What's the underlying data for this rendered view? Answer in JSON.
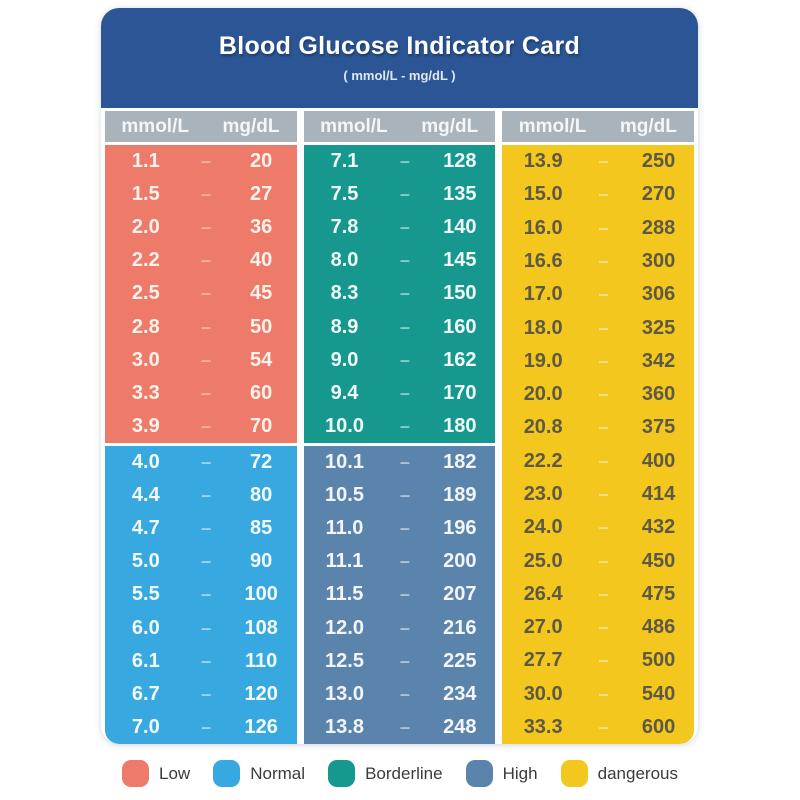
{
  "card": {
    "header": {
      "title": "Blood Glucose Indicator Card",
      "subtitle": "( mmol/L - mg/dL )",
      "background": "#2b5594"
    },
    "column_header": {
      "background": "#a8b3bb",
      "text_color": "#f4f6f7"
    }
  },
  "chart_data": {
    "type": "table",
    "title": "Blood Glucose Indicator Card",
    "subtitle": "( mmol/L - mg/dL )",
    "units": [
      "mmol/L",
      "mg/dL"
    ],
    "columns_layout": [
      [
        0,
        1
      ],
      [
        2,
        3
      ],
      [
        4
      ]
    ],
    "categories": [
      {
        "name": "Low",
        "color": "#ee7a69",
        "text_color": "#fdf3ec",
        "dash_color": "#f6b3a4",
        "rows": [
          [
            1.1,
            20
          ],
          [
            1.5,
            27
          ],
          [
            2.0,
            36
          ],
          [
            2.2,
            40
          ],
          [
            2.5,
            45
          ],
          [
            2.8,
            50
          ],
          [
            3.0,
            54
          ],
          [
            3.3,
            60
          ],
          [
            3.9,
            70
          ]
        ]
      },
      {
        "name": "Normal",
        "color": "#38a8e1",
        "text_color": "#f2fafd",
        "dash_color": "#9ed4ef",
        "rows": [
          [
            4.0,
            72
          ],
          [
            4.4,
            80
          ],
          [
            4.7,
            85
          ],
          [
            5.0,
            90
          ],
          [
            5.5,
            100
          ],
          [
            6.0,
            108
          ],
          [
            6.1,
            110
          ],
          [
            6.7,
            120
          ],
          [
            7.0,
            126
          ]
        ]
      },
      {
        "name": "Borderline",
        "color": "#17988e",
        "text_color": "#f0faf8",
        "dash_color": "#8accc5",
        "rows": [
          [
            7.1,
            128
          ],
          [
            7.5,
            135
          ],
          [
            7.8,
            140
          ],
          [
            8.0,
            145
          ],
          [
            8.3,
            150
          ],
          [
            8.9,
            160
          ],
          [
            9.0,
            162
          ],
          [
            9.4,
            170
          ],
          [
            10.0,
            180
          ]
        ]
      },
      {
        "name": "High",
        "color": "#5b84ad",
        "text_color": "#f2f6fa",
        "dash_color": "#aec2d5",
        "rows": [
          [
            10.1,
            182
          ],
          [
            10.5,
            189
          ],
          [
            11.0,
            196
          ],
          [
            11.1,
            200
          ],
          [
            11.5,
            207
          ],
          [
            12.0,
            216
          ],
          [
            12.5,
            225
          ],
          [
            13.0,
            234
          ],
          [
            13.8,
            248
          ]
        ]
      },
      {
        "name": "dangerous",
        "color": "#f3c71d",
        "text_color": "#5d5945",
        "dash_color": "#f7e08a",
        "rows": [
          [
            13.9,
            250
          ],
          [
            15.0,
            270
          ],
          [
            16.0,
            288
          ],
          [
            16.6,
            300
          ],
          [
            17.0,
            306
          ],
          [
            18.0,
            325
          ],
          [
            19.0,
            342
          ],
          [
            20.0,
            360
          ],
          [
            20.8,
            375
          ],
          [
            22.2,
            400
          ],
          [
            23.0,
            414
          ],
          [
            24.0,
            432
          ],
          [
            25.0,
            450
          ],
          [
            26.4,
            475
          ],
          [
            27.0,
            486
          ],
          [
            27.7,
            500
          ],
          [
            30.0,
            540
          ],
          [
            33.3,
            600
          ]
        ]
      }
    ]
  },
  "legend": {
    "label_color": "#3b3b3b"
  }
}
